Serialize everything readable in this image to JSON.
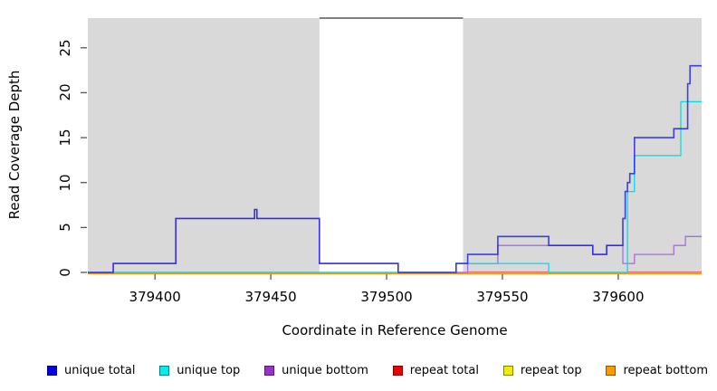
{
  "chart_data": {
    "type": "line",
    "subtype": "step-after-coverage",
    "title": "",
    "xlabel": "Coordinate in Reference Genome",
    "ylabel": "Read Coverage Depth",
    "x_range": [
      379371,
      379636
    ],
    "ylim": [
      0,
      28
    ],
    "x_ticks": [
      379400,
      379450,
      379500,
      379550,
      379600
    ],
    "y_ticks": [
      0,
      5,
      10,
      15,
      20,
      25
    ],
    "grid": false,
    "shade_color": "#d9d9d9",
    "shaded_regions": [
      [
        379371,
        379471
      ],
      [
        379533,
        379636
      ]
    ],
    "legend_position": "bottom",
    "legend": [
      {
        "label": "unique total",
        "color": "#0000ee"
      },
      {
        "label": "unique top",
        "color": "#00eeee"
      },
      {
        "label": "unique bottom",
        "color": "#9932cc"
      },
      {
        "label": "repeat total",
        "color": "#ee0000"
      },
      {
        "label": "repeat top",
        "color": "#eeee00"
      },
      {
        "label": "repeat bottom",
        "color": "#ff9900"
      }
    ],
    "series": [
      {
        "name": "repeat total",
        "color": "#e02020",
        "points": [
          [
            379371,
            0
          ],
          [
            379636,
            0
          ]
        ]
      },
      {
        "name": "repeat top",
        "color": "#e8dc00",
        "points": [
          [
            379371,
            0
          ],
          [
            379636,
            0
          ]
        ]
      },
      {
        "name": "repeat bottom",
        "color": "#ff8c00",
        "points": [
          [
            379371,
            0
          ],
          [
            379636,
            0
          ]
        ]
      },
      {
        "name": "unique bottom",
        "color": "#a46be0",
        "points": [
          [
            379371,
            0
          ],
          [
            379382,
            1
          ],
          [
            379409,
            6
          ],
          [
            379443,
            7
          ],
          [
            379444,
            6
          ],
          [
            379471,
            1
          ],
          [
            379505,
            0
          ],
          [
            379535,
            1
          ],
          [
            379548,
            3
          ],
          [
            379589,
            2
          ],
          [
            379595,
            3
          ],
          [
            379602,
            1
          ],
          [
            379607,
            2
          ],
          [
            379624,
            3
          ],
          [
            379629,
            4
          ],
          [
            379636,
            4
          ]
        ]
      },
      {
        "name": "unique top",
        "color": "#00dde6",
        "points": [
          [
            379371,
            0
          ],
          [
            379530,
            1
          ],
          [
            379570,
            0
          ],
          [
            379604,
            9
          ],
          [
            379607,
            13
          ],
          [
            379627,
            19
          ],
          [
            379636,
            19
          ]
        ]
      },
      {
        "name": "unique total",
        "color": "#1c1ce8",
        "points": [
          [
            379371,
            0
          ],
          [
            379382,
            1
          ],
          [
            379409,
            6
          ],
          [
            379443,
            7
          ],
          [
            379444,
            6
          ],
          [
            379471,
            1
          ],
          [
            379505,
            0
          ],
          [
            379530,
            1
          ],
          [
            379535,
            2
          ],
          [
            379548,
            4
          ],
          [
            379570,
            3
          ],
          [
            379589,
            2
          ],
          [
            379595,
            3
          ],
          [
            379602,
            6
          ],
          [
            379603,
            9
          ],
          [
            379604,
            10
          ],
          [
            379605,
            11
          ],
          [
            379607,
            15
          ],
          [
            379624,
            16
          ],
          [
            379630,
            21
          ],
          [
            379631,
            23
          ],
          [
            379636,
            23
          ]
        ]
      }
    ]
  }
}
